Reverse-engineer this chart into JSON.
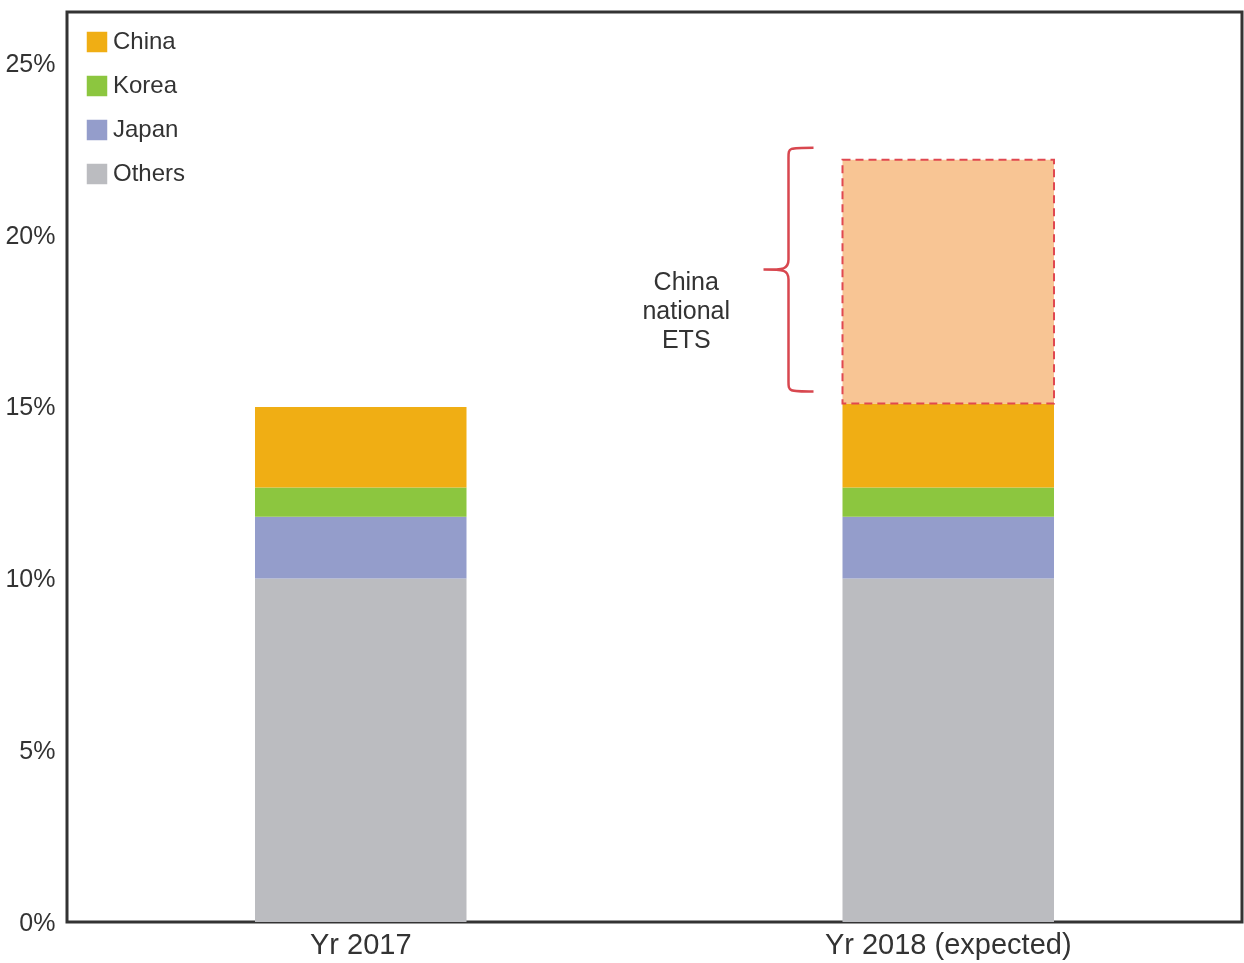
{
  "chart_data": {
    "type": "bar",
    "stacked": true,
    "categories": [
      "Yr 2017",
      "Yr 2018 (expected)"
    ],
    "series": [
      {
        "name": "Others",
        "color": "#bbbcc0",
        "values": [
          10,
          10
        ]
      },
      {
        "name": "Japan",
        "color": "#949dcb",
        "values": [
          1.8,
          1.8
        ]
      },
      {
        "name": "Korea",
        "color": "#8cc63f",
        "values": [
          0.85,
          0.85
        ]
      },
      {
        "name": "China",
        "color": "#f0ae14",
        "values": [
          2.35,
          2.45
        ]
      },
      {
        "color": "#f8c594",
        "line_style": "dashed",
        "values": [
          null,
          7.1
        ]
      }
    ],
    "ylim": [
      0,
      26.5
    ],
    "yticks": [
      {
        "value": 0,
        "label": "0%"
      },
      {
        "value": 5,
        "label": "5%"
      },
      {
        "value": 10,
        "label": "10%"
      },
      {
        "value": 15,
        "label": "15%"
      },
      {
        "value": 20,
        "label": "20%"
      },
      {
        "value": 25,
        "label": "25%"
      }
    ],
    "annotations": [
      "China national ETS"
    ],
    "legend": "top left",
    "grid": false
  }
}
